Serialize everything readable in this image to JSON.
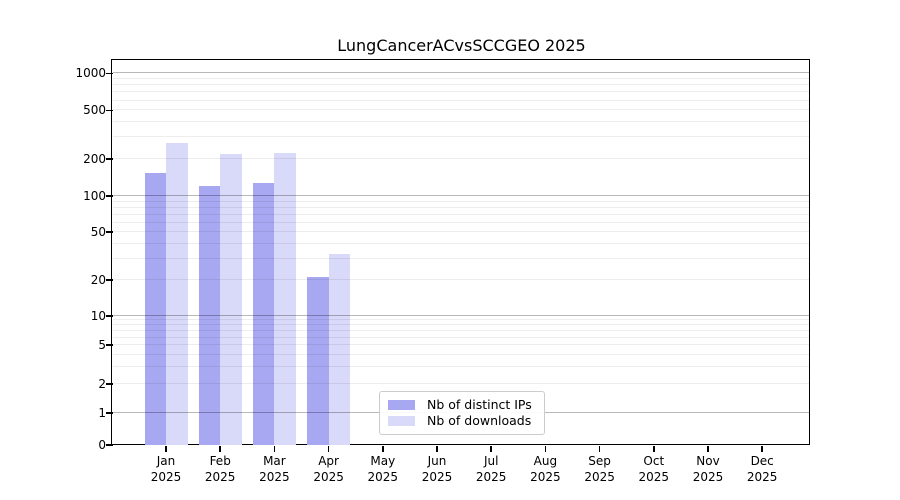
{
  "chart_data": {
    "type": "bar",
    "title": "LungCancerACvsSCCGEO 2025",
    "categories": [
      "Jan 2025",
      "Feb 2025",
      "Mar 2025",
      "Apr 2025",
      "May 2025",
      "Jun 2025",
      "Jul 2025",
      "Aug 2025",
      "Sep 2025",
      "Oct 2025",
      "Nov 2025",
      "Dec 2025"
    ],
    "series": [
      {
        "name": "Nb of distinct IPs",
        "color": "#a7a7f2",
        "values": [
          155,
          120,
          127,
          21,
          0,
          0,
          0,
          0,
          0,
          0,
          0,
          0
        ]
      },
      {
        "name": "Nb of downloads",
        "color": "#d9d9f9",
        "values": [
          270,
          220,
          225,
          33,
          0,
          0,
          0,
          0,
          0,
          0,
          0,
          0
        ]
      }
    ],
    "yticks": [
      1000,
      500,
      200,
      100,
      50,
      20,
      10,
      5,
      2,
      1,
      0
    ],
    "xlabel": "",
    "ylabel": "",
    "yscale": "log (with 0 baseline)",
    "ylim": [
      0,
      1260
    ],
    "grid": "horizontal major and minor gridlines",
    "legend_position": "inside, lower center-left"
  }
}
